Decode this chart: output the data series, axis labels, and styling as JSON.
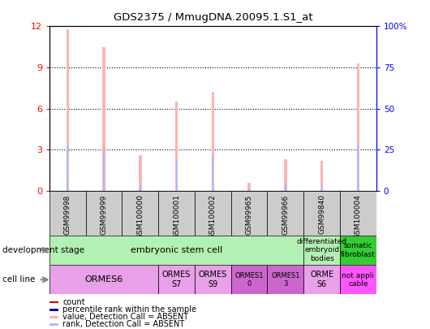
{
  "title": "GDS2375 / MmugDNA.20095.1.S1_at",
  "samples": [
    "GSM99998",
    "GSM99999",
    "GSM100000",
    "GSM100001",
    "GSM100002",
    "GSM99965",
    "GSM99966",
    "GSM99840",
    "GSM100004"
  ],
  "absent_value": [
    11.8,
    10.5,
    2.6,
    6.5,
    7.2,
    0.6,
    2.3,
    2.2,
    9.3
  ],
  "absent_rank": [
    3.3,
    3.1,
    0.4,
    2.2,
    2.6,
    0.1,
    0.5,
    0.4,
    3.3
  ],
  "absent_value_color": "#ffb3b3",
  "absent_rank_color": "#aabbff",
  "ylim_left": [
    0,
    12
  ],
  "ylim_right": [
    0,
    100
  ],
  "yticks_left": [
    0,
    3,
    6,
    9,
    12
  ],
  "yticks_right": [
    0,
    25,
    50,
    75,
    100
  ],
  "ytick_labels_right": [
    "0",
    "25",
    "50",
    "75",
    "100%"
  ],
  "dev_stage_data": [
    {
      "label": "embryonic stem cell",
      "start": 0,
      "end": 7,
      "color": "#b3f0b3",
      "fontsize": 8
    },
    {
      "label": "differentiated\nembryoid\nbodies",
      "start": 7,
      "end": 8,
      "color": "#b3f0b3",
      "fontsize": 6.5
    },
    {
      "label": "somatic\nfibroblast",
      "start": 8,
      "end": 9,
      "color": "#33cc33",
      "fontsize": 6.5
    }
  ],
  "cell_line_data": [
    {
      "label": "ORMES6",
      "start": 0,
      "end": 3,
      "color": "#e8a0e8",
      "fontsize": 8
    },
    {
      "label": "ORMES\nS7",
      "start": 3,
      "end": 4,
      "color": "#e8a0e8",
      "fontsize": 7
    },
    {
      "label": "ORMES\nS9",
      "start": 4,
      "end": 5,
      "color": "#e8a0e8",
      "fontsize": 7
    },
    {
      "label": "ORMES1\n0",
      "start": 5,
      "end": 6,
      "color": "#cc66cc",
      "fontsize": 6
    },
    {
      "label": "ORMES1\n3",
      "start": 6,
      "end": 7,
      "color": "#cc66cc",
      "fontsize": 6
    },
    {
      "label": "ORME\nS6",
      "start": 7,
      "end": 8,
      "color": "#e8a0e8",
      "fontsize": 7
    },
    {
      "label": "not appli\ncable",
      "start": 8,
      "end": 9,
      "color": "#ff55ff",
      "fontsize": 6.5
    }
  ],
  "legend_items": [
    {
      "label": "count",
      "color": "#cc0000"
    },
    {
      "label": "percentile rank within the sample",
      "color": "#0000cc"
    },
    {
      "label": "value, Detection Call = ABSENT",
      "color": "#ffb3b3"
    },
    {
      "label": "rank, Detection Call = ABSENT",
      "color": "#aabbff"
    }
  ],
  "bar_width": 0.08,
  "rank_marker_size": 6
}
